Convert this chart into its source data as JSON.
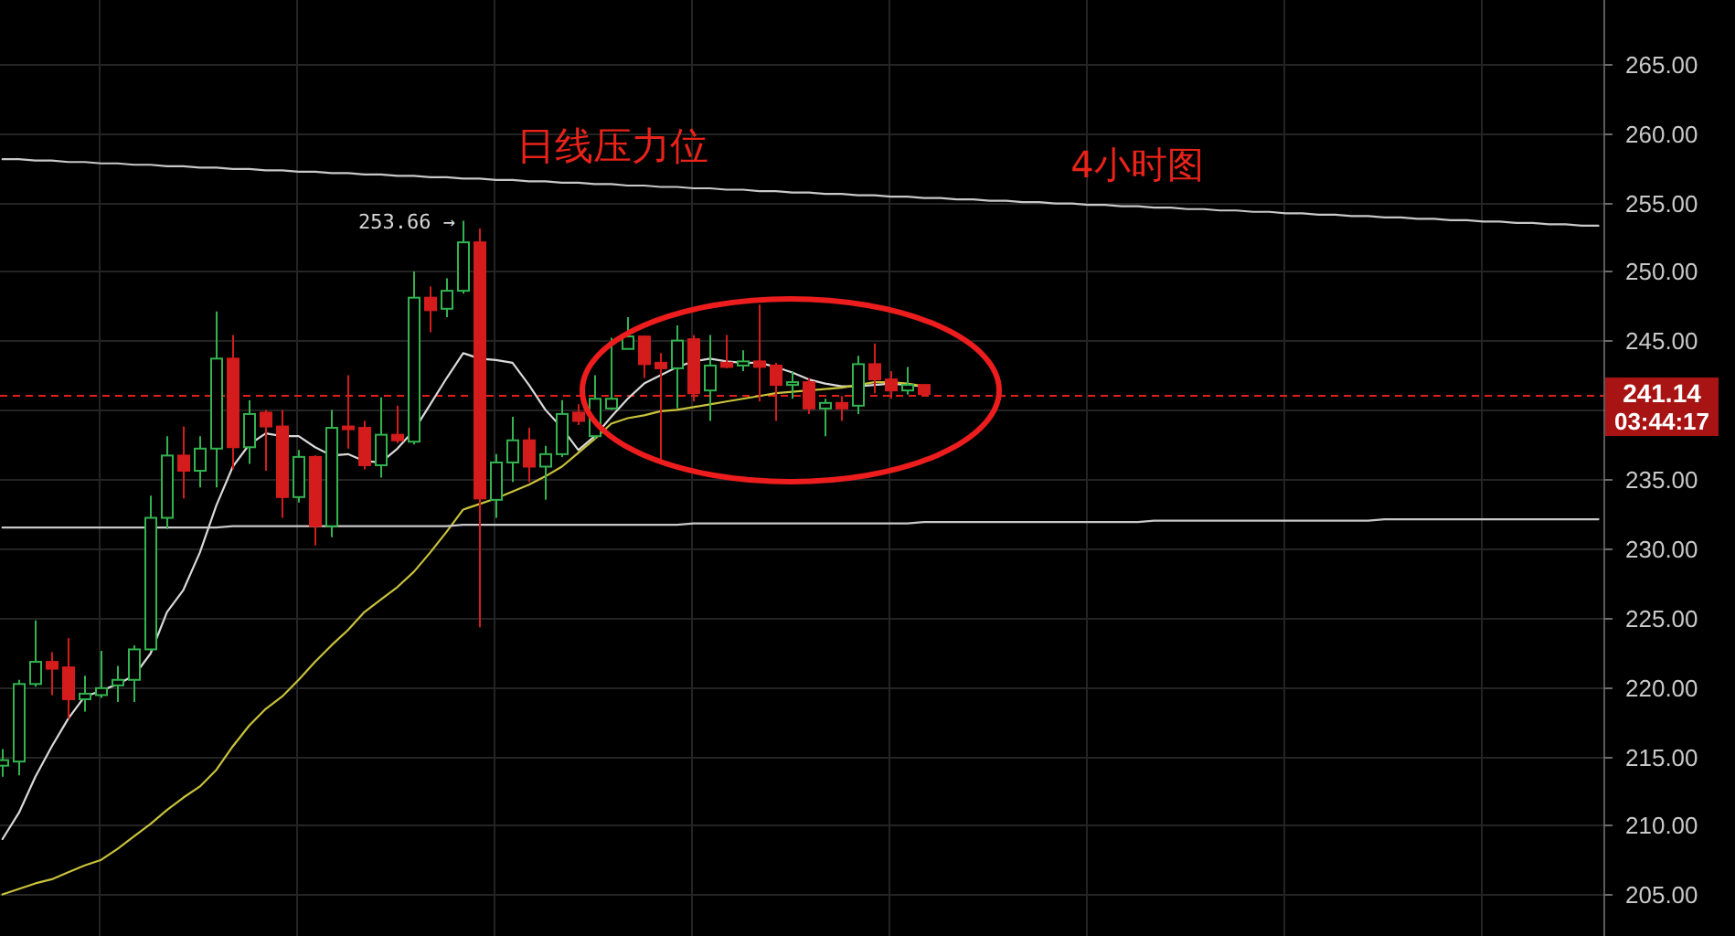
{
  "chart_data": {
    "type": "candlestick",
    "title": "4小时图",
    "categories": [
      null,
      null,
      null,
      null,
      null,
      null,
      null,
      null,
      null,
      null,
      null,
      null,
      null,
      null,
      null,
      null,
      null,
      null,
      null,
      null,
      null,
      null,
      null,
      null,
      null,
      null,
      null,
      null,
      null,
      null,
      null,
      null,
      null,
      null,
      null,
      null,
      null,
      null,
      null,
      null,
      null,
      null,
      null,
      null,
      null,
      null,
      null,
      null,
      null,
      null,
      null,
      null,
      null,
      null,
      null,
      null,
      null,
      null,
      null,
      null,
      null,
      null,
      null,
      null,
      null,
      null,
      null,
      null,
      null,
      null,
      null,
      null,
      null,
      null,
      null,
      null,
      null,
      null,
      null,
      null,
      null,
      null,
      null,
      null,
      null,
      null,
      null,
      null,
      null,
      null,
      null,
      null,
      null,
      null,
      null,
      null,
      null,
      null
    ],
    "ohlc": [
      [
        214.3,
        215.5,
        213.5,
        214.7
      ],
      [
        214.6,
        220.5,
        213.6,
        220.2
      ],
      [
        220.2,
        224.8,
        220.0,
        221.8
      ],
      [
        221.8,
        222.5,
        219.4,
        221.3
      ],
      [
        221.4,
        223.5,
        217.7,
        219.1
      ],
      [
        219.1,
        220.8,
        218.2,
        219.5
      ],
      [
        219.4,
        222.6,
        219.2,
        219.9
      ],
      [
        220.1,
        221.5,
        218.9,
        220.5
      ],
      [
        220.5,
        223.0,
        218.9,
        222.7
      ],
      [
        222.7,
        233.8,
        222.6,
        232.2
      ],
      [
        232.2,
        238.1,
        231.4,
        236.7
      ],
      [
        236.7,
        238.8,
        233.6,
        235.6
      ],
      [
        235.6,
        238.1,
        234.4,
        237.2
      ],
      [
        237.2,
        247.1,
        234.4,
        243.7
      ],
      [
        243.7,
        245.4,
        235.7,
        237.3
      ],
      [
        237.3,
        240.7,
        236.1,
        239.7
      ],
      [
        239.8,
        240.0,
        235.6,
        238.8
      ],
      [
        238.8,
        240.0,
        232.2,
        233.7
      ],
      [
        233.7,
        237.1,
        233.3,
        236.6
      ],
      [
        236.6,
        236.7,
        230.2,
        231.6
      ],
      [
        231.6,
        240.0,
        230.8,
        238.7
      ],
      [
        238.8,
        242.5,
        237.2,
        238.6
      ],
      [
        238.7,
        239.2,
        235.7,
        236.0
      ],
      [
        236.0,
        240.9,
        235.1,
        238.2
      ],
      [
        238.2,
        240.3,
        237.6,
        237.8
      ],
      [
        237.7,
        250.0,
        237.5,
        248.1
      ],
      [
        248.1,
        248.9,
        245.6,
        247.2
      ],
      [
        247.3,
        249.5,
        246.7,
        248.6
      ],
      [
        248.6,
        253.66,
        248.4,
        252.1
      ],
      [
        252.1,
        253.1,
        224.3,
        233.6
      ],
      [
        233.5,
        236.8,
        232.2,
        236.2
      ],
      [
        236.2,
        239.5,
        234.8,
        237.8
      ],
      [
        237.8,
        238.7,
        234.8,
        235.9
      ],
      [
        235.9,
        237.4,
        233.5,
        236.8
      ],
      [
        236.8,
        240.7,
        236.6,
        239.7
      ],
      [
        239.8,
        240.4,
        238.9,
        239.2
      ],
      [
        238.1,
        242.5,
        237.9,
        240.8
      ],
      [
        240.1,
        245.2,
        240.0,
        240.8
      ],
      [
        244.4,
        246.7,
        244.4,
        245.3
      ],
      [
        245.3,
        245.3,
        242.3,
        243.3
      ],
      [
        243.4,
        244.1,
        236.4,
        243.0
      ],
      [
        243.0,
        246.1,
        240.1,
        245.0
      ],
      [
        245.1,
        245.4,
        240.6,
        241.2
      ],
      [
        241.4,
        245.4,
        239.2,
        243.2
      ],
      [
        243.4,
        245.4,
        243.0,
        243.1
      ],
      [
        243.2,
        244.3,
        242.8,
        243.5
      ],
      [
        243.5,
        247.6,
        240.6,
        243.1
      ],
      [
        243.2,
        243.4,
        239.2,
        241.8
      ],
      [
        241.8,
        242.8,
        240.8,
        242.0
      ],
      [
        242.0,
        242.3,
        239.7,
        240.1
      ],
      [
        240.1,
        240.8,
        238.1,
        240.5
      ],
      [
        240.5,
        241.0,
        239.2,
        240.1
      ],
      [
        240.3,
        243.9,
        239.7,
        243.3
      ],
      [
        243.3,
        244.8,
        241.2,
        242.2
      ],
      [
        242.2,
        242.8,
        240.8,
        241.4
      ],
      [
        241.4,
        243.1,
        241.1,
        241.8
      ],
      [
        241.8,
        241.8,
        241.0,
        241.14
      ],
      null,
      null,
      null,
      null,
      null,
      null,
      null,
      null,
      null,
      null,
      null,
      null,
      null,
      null,
      null,
      null,
      null,
      null,
      null,
      null,
      null,
      null,
      null,
      null,
      null,
      null,
      null,
      null,
      null,
      null,
      null,
      null,
      null,
      null,
      null,
      null,
      null,
      null,
      null,
      null,
      null
    ],
    "colors": [
      "#33b34f",
      "#33b34f",
      "#33b34f",
      "#d41c1c",
      "#d41c1c",
      "#33b34f",
      "#33b34f",
      "#33b34f",
      "#33b34f",
      "#33b34f",
      "#33b34f",
      "#d41c1c",
      "#33b34f",
      "#33b34f",
      "#d41c1c",
      "#33b34f",
      "#d41c1c",
      "#d41c1c",
      "#33b34f",
      "#d41c1c",
      "#33b34f",
      "#d41c1c",
      "#d41c1c",
      "#33b34f",
      "#d41c1c",
      "#33b34f",
      "#d41c1c",
      "#33b34f",
      "#33b34f",
      "#d41c1c",
      "#33b34f",
      "#33b34f",
      "#d41c1c",
      "#33b34f",
      "#33b34f",
      "#d41c1c",
      "#33b34f",
      "#33b34f",
      "#33b34f",
      "#d41c1c",
      "#d41c1c",
      "#33b34f",
      "#d41c1c",
      "#33b34f",
      "#d41c1c",
      "#33b34f",
      "#d41c1c",
      "#d41c1c",
      "#33b34f",
      "#d41c1c",
      "#33b34f",
      "#d41c1c",
      "#33b34f",
      "#d41c1c",
      "#d41c1c",
      "#33b34f",
      "#d41c1c",
      null,
      null,
      null,
      null,
      null,
      null,
      null,
      null,
      null,
      null,
      null,
      null,
      null,
      null,
      null,
      null,
      null,
      null,
      null,
      null,
      null,
      null,
      null,
      null,
      null,
      null,
      null,
      null,
      null,
      null,
      null,
      null,
      null,
      null,
      null,
      null,
      null,
      null,
      null,
      null,
      null
    ],
    "series": [
      {
        "type": "line",
        "color": "#d9d9d9",
        "values": [
          209.0,
          210.9,
          213.5,
          215.7,
          217.7,
          219.3,
          219.7,
          220.2,
          220.8,
          222.4,
          225.4,
          227.0,
          229.7,
          233.1,
          235.9,
          237.5,
          238.3,
          238.1,
          238.1,
          237.3,
          236.7,
          236.8,
          236.3,
          236.2,
          237.2,
          238.5,
          240.4,
          242.3,
          244.1,
          243.7,
          243.6,
          243.4,
          241.8,
          240.0,
          238.7,
          237.1,
          238.1,
          239.5,
          240.8,
          241.9,
          242.5,
          243.1,
          243.5,
          243.7,
          243.5,
          243.4,
          243.4,
          243.1,
          242.7,
          242.2,
          241.9,
          241.7,
          241.7,
          241.8,
          241.9,
          241.8,
          241.7,
          null,
          null,
          null,
          null,
          null,
          null,
          null,
          null,
          null,
          null,
          null,
          null,
          null,
          null,
          null,
          null,
          null,
          null,
          null,
          null,
          null,
          null,
          null,
          null,
          null,
          null,
          null,
          null,
          null,
          null,
          null,
          null,
          null,
          null,
          null,
          null,
          null,
          null,
          null,
          null,
          null
        ]
      },
      {
        "type": "line",
        "color": "#c9c23b",
        "values": [
          205.0,
          205.4,
          205.8,
          206.1,
          206.6,
          207.1,
          207.5,
          208.3,
          209.2,
          210.1,
          211.1,
          212.0,
          212.8,
          214.0,
          215.7,
          217.2,
          218.4,
          219.3,
          220.5,
          221.8,
          223.0,
          224.1,
          225.4,
          226.3,
          227.2,
          228.3,
          229.7,
          231.2,
          232.8,
          233.2,
          233.6,
          234.1,
          234.6,
          235.2,
          235.9,
          236.9,
          237.9,
          239.0,
          239.4,
          239.6,
          239.9,
          240.0,
          240.2,
          240.4,
          240.6,
          240.8,
          241.0,
          241.2,
          241.3,
          241.4,
          241.5,
          241.6,
          241.8,
          242.0,
          242.0,
          241.9,
          241.7,
          null,
          null,
          null,
          null,
          null,
          null,
          null,
          null,
          null,
          null,
          null,
          null,
          null,
          null,
          null,
          null,
          null,
          null,
          null,
          null,
          null,
          null,
          null,
          null,
          null,
          null,
          null,
          null,
          null,
          null,
          null,
          null,
          null,
          null,
          null,
          null,
          null,
          null,
          null,
          null,
          null
        ]
      },
      {
        "type": "line",
        "color": "#c8c8c8",
        "values": [
          258.1,
          258.1,
          258.0,
          258.0,
          257.9,
          257.9,
          257.8,
          257.8,
          257.7,
          257.7,
          257.6,
          257.6,
          257.5,
          257.5,
          257.4,
          257.4,
          257.3,
          257.3,
          257.2,
          257.2,
          257.1,
          257.1,
          257.0,
          257.0,
          256.9,
          256.9,
          256.8,
          256.8,
          256.7,
          256.7,
          256.6,
          256.6,
          256.5,
          256.5,
          256.4,
          256.4,
          256.3,
          256.3,
          256.2,
          256.2,
          256.1,
          256.1,
          256.0,
          256.0,
          255.9,
          255.9,
          255.8,
          255.8,
          255.7,
          255.7,
          255.6,
          255.6,
          255.5,
          255.5,
          255.4,
          255.4,
          255.3,
          255.3,
          255.2,
          255.2,
          255.1,
          255.1,
          255.0,
          255.0,
          254.9,
          254.9,
          254.8,
          254.8,
          254.7,
          254.7,
          254.6,
          254.6,
          254.5,
          254.5,
          254.4,
          254.4,
          254.3,
          254.3,
          254.2,
          254.2,
          254.1,
          254.1,
          254.0,
          254.0,
          253.9,
          253.9,
          253.8,
          253.8,
          253.7,
          253.7,
          253.6,
          253.6,
          253.5,
          253.5,
          253.4,
          253.4,
          253.3,
          253.3
        ]
      },
      {
        "type": "line",
        "color": "#c8c8c8",
        "values": [
          231.5,
          231.5,
          231.5,
          231.5,
          231.5,
          231.5,
          231.5,
          231.5,
          231.5,
          231.5,
          231.5,
          231.5,
          231.5,
          231.5,
          231.6,
          231.6,
          231.6,
          231.6,
          231.6,
          231.6,
          231.6,
          231.6,
          231.6,
          231.6,
          231.6,
          231.6,
          231.6,
          231.6,
          231.7,
          231.7,
          231.7,
          231.7,
          231.7,
          231.7,
          231.7,
          231.7,
          231.7,
          231.7,
          231.7,
          231.7,
          231.7,
          231.7,
          231.8,
          231.8,
          231.8,
          231.8,
          231.8,
          231.8,
          231.8,
          231.8,
          231.8,
          231.8,
          231.8,
          231.8,
          231.8,
          231.8,
          231.9,
          231.9,
          231.9,
          231.9,
          231.9,
          231.9,
          231.9,
          231.9,
          231.9,
          231.9,
          231.9,
          231.9,
          231.9,
          231.9,
          232.0,
          232.0,
          232.0,
          232.0,
          232.0,
          232.0,
          232.0,
          232.0,
          232.0,
          232.0,
          232.0,
          232.0,
          232.0,
          232.0,
          232.1,
          232.1,
          232.1,
          232.1,
          232.1,
          232.1,
          232.1,
          232.1,
          232.1,
          232.1,
          232.1,
          232.1,
          232.1,
          232.1
        ]
      }
    ],
    "ylim": [
      202,
      269.6
    ],
    "yticks": [
      {
        "value": 205,
        "label": "205.00"
      },
      {
        "value": 210,
        "label": "210.00"
      },
      {
        "value": 215,
        "label": "215.00"
      },
      {
        "value": 220,
        "label": "220.00"
      },
      {
        "value": 225,
        "label": "225.00"
      },
      {
        "value": 230,
        "label": "230.00"
      },
      {
        "value": 235,
        "label": "235.00"
      },
      {
        "value": 240,
        "label": null
      },
      {
        "value": 245,
        "label": "245.00"
      },
      {
        "value": 250,
        "label": "250.00"
      },
      {
        "value": 255,
        "label": "255.00"
      },
      {
        "value": 260,
        "label": "260.00"
      },
      {
        "value": 265,
        "label": "265.00"
      }
    ],
    "grid": true,
    "ref_lines": [
      {
        "axis": "y",
        "value": 241.14,
        "label": "241.14",
        "color": "#e0201a",
        "line_style": "dashed"
      }
    ],
    "annotations": [
      "日线压力位",
      "253.66 →",
      "03:44:17"
    ]
  }
}
